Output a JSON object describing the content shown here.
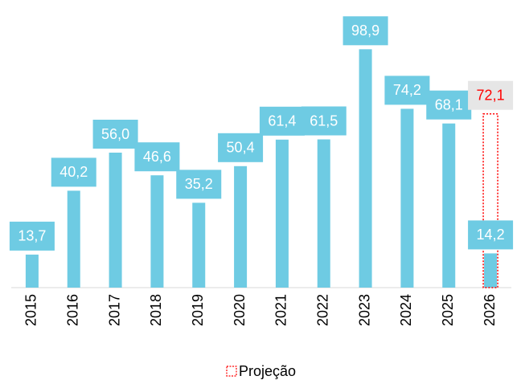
{
  "chart_data": {
    "type": "bar",
    "categories": [
      "2015",
      "2016",
      "2017",
      "2018",
      "2019",
      "2020",
      "2021",
      "2022",
      "2023",
      "2024",
      "2025",
      "2026"
    ],
    "series": [
      {
        "color": "#6ecbe3",
        "values": [
          13.7,
          40.2,
          56.0,
          46.6,
          35.2,
          50.4,
          61.4,
          61.5,
          98.9,
          74.2,
          68.1,
          14.2
        ],
        "value_labels": [
          "13,7",
          "40,2",
          "56,0",
          "46,6",
          "35,2",
          "50,4",
          "61,4",
          "61,5",
          "98,9",
          "74,2",
          "68,1",
          "14,2"
        ]
      },
      {
        "name": "Projeção",
        "color": "#ff0000",
        "values": [
          null,
          null,
          null,
          null,
          null,
          null,
          null,
          null,
          null,
          null,
          null,
          72.1
        ],
        "value_labels": [
          null,
          null,
          null,
          null,
          null,
          null,
          null,
          null,
          null,
          null,
          null,
          "72,1"
        ]
      }
    ],
    "ylim": [
      0,
      110
    ]
  }
}
